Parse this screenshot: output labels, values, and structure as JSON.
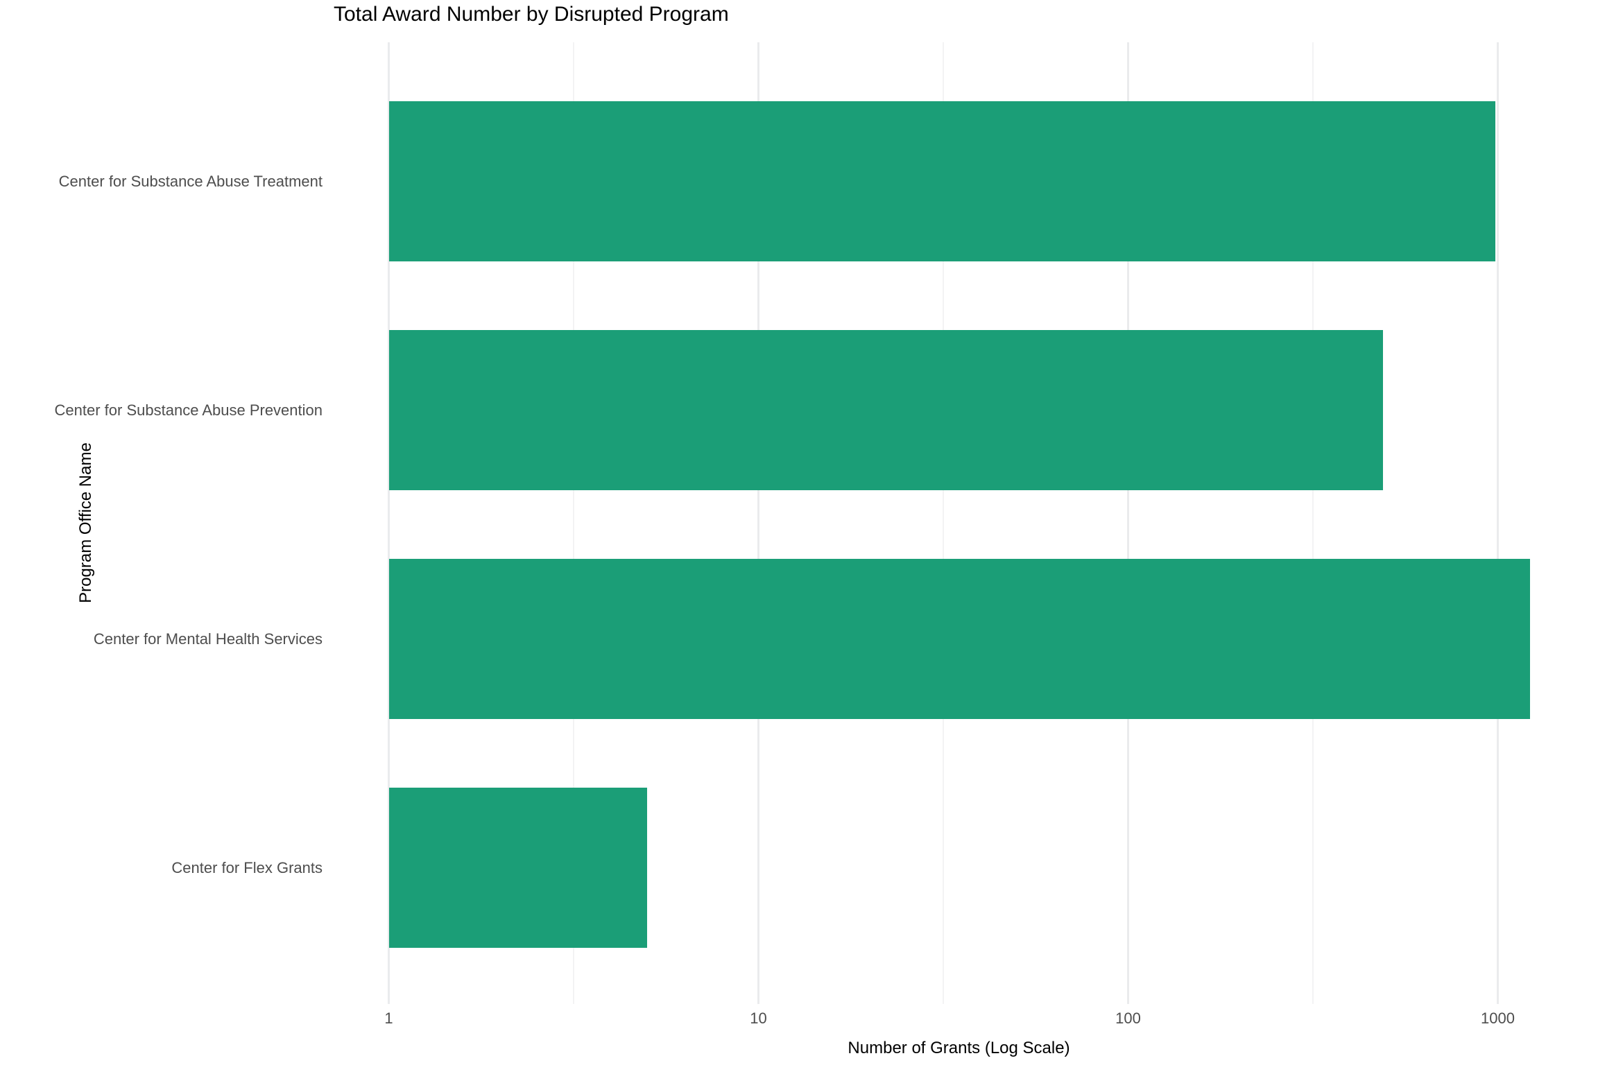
{
  "chart_data": {
    "type": "bar",
    "orientation": "horizontal",
    "title": "Total Award Number by Disrupted Program",
    "xlabel": "Number of Grants (Log Scale)",
    "ylabel": "Program Office Name",
    "x_scale": "log10",
    "x_tick_values": [
      1,
      10,
      100,
      1000
    ],
    "x_tick_labels": [
      "1",
      "10",
      "100",
      "1000"
    ],
    "x_minor_tick_values": [
      3.162,
      31.62,
      316.2
    ],
    "x_range": [
      0.7,
      1750
    ],
    "grid": true,
    "legend": "none",
    "categories": [
      "Center for Substance Abuse Treatment",
      "Center for Substance Abuse Prevention",
      "Center for Mental Health Services",
      "Center for Flex Grants"
    ],
    "values": [
      985,
      490,
      1220,
      5
    ],
    "bar_color": "#1B9E77",
    "background_color": "#FFFFFF",
    "major_grid_color": "#EAEBED",
    "minor_grid_color": "#F3F3F4",
    "tick_label_color": "#4D4D4D",
    "title_color": "#000000"
  }
}
